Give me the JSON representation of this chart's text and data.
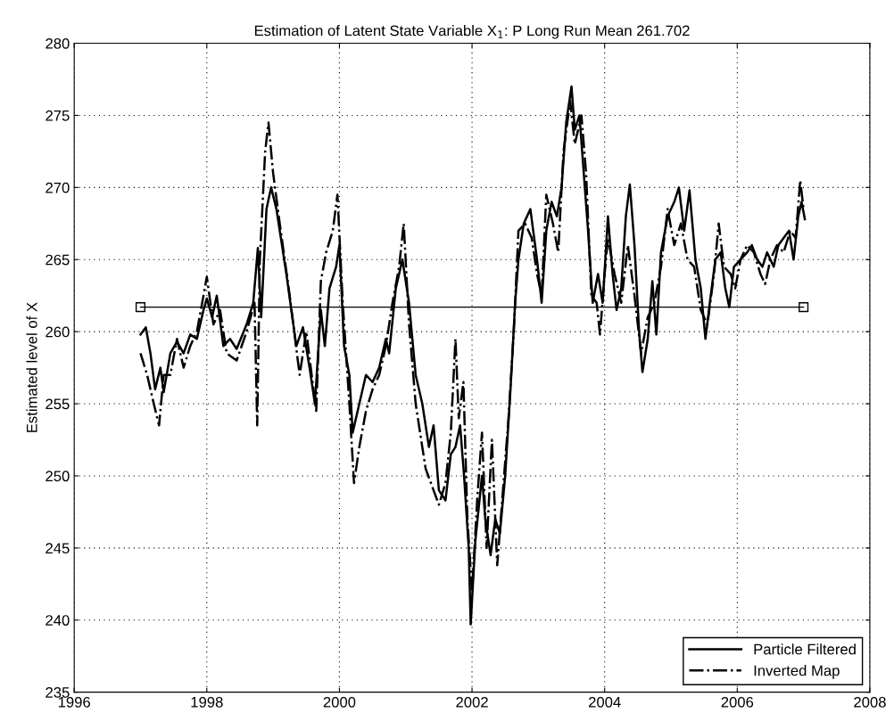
{
  "chart_data": {
    "type": "line",
    "title": "Estimation of Latent State Variable X$_{1}$: P Long Run Mean 261.702",
    "ylabel": "Estimated level of X",
    "xlim": [
      1996,
      2008
    ],
    "xticks": [
      1996,
      1998,
      2000,
      2002,
      2004,
      2006,
      2008
    ],
    "ylim": [
      235,
      280
    ],
    "yticks": [
      235,
      240,
      245,
      250,
      255,
      260,
      265,
      270,
      275,
      280
    ],
    "grid": true,
    "legend": "bottom right",
    "series": [
      {
        "name": "Particle Filtered",
        "color": "#000000",
        "line_style": "solid",
        "marker": "none",
        "x": [
          1997.0,
          1997.08,
          1997.15,
          1997.22,
          1997.3,
          1997.35,
          1997.45,
          1997.55,
          1997.65,
          1997.75,
          1997.85,
          1997.95,
          1998.0,
          1998.08,
          1998.15,
          1998.25,
          1998.35,
          1998.45,
          1998.6,
          1998.7,
          1998.77,
          1998.82,
          1998.9,
          1998.97,
          1999.05,
          1999.2,
          1999.35,
          1999.45,
          1999.55,
          1999.63,
          1999.72,
          1999.78,
          1999.85,
          1999.95,
          2000.0,
          2000.07,
          2000.15,
          2000.2,
          2000.3,
          2000.4,
          2000.5,
          2000.6,
          2000.7,
          2000.75,
          2000.85,
          2000.95,
          2001.05,
          2001.15,
          2001.25,
          2001.35,
          2001.42,
          2001.5,
          2001.6,
          2001.68,
          2001.75,
          2001.82,
          2001.88,
          2001.95,
          2001.98,
          2002.05,
          2002.15,
          2002.2,
          2002.28,
          2002.35,
          2002.42,
          2002.5,
          2002.58,
          2002.65,
          2002.7,
          2002.78,
          2002.88,
          2002.98,
          2003.05,
          2003.12,
          2003.2,
          2003.28,
          2003.35,
          2003.42,
          2003.5,
          2003.55,
          2003.62,
          2003.75,
          2003.82,
          2003.9,
          2003.97,
          2004.05,
          2004.12,
          2004.18,
          2004.25,
          2004.32,
          2004.38,
          2004.45,
          2004.52,
          2004.57,
          2004.65,
          2004.72,
          2004.78,
          2004.85,
          2004.95,
          2005.05,
          2005.12,
          2005.2,
          2005.28,
          2005.37,
          2005.45,
          2005.52,
          2005.6,
          2005.67,
          2005.75,
          2005.82,
          2005.88,
          2005.95,
          2006.05,
          2006.15,
          2006.22,
          2006.3,
          2006.38,
          2006.45,
          2006.55,
          2006.62,
          2006.7,
          2006.78,
          2006.85,
          2006.92,
          2006.97,
          2007.02
        ],
        "values": [
          259.8,
          260.3,
          258.5,
          256.0,
          257.5,
          255.8,
          258.5,
          259.3,
          258.5,
          259.8,
          259.5,
          261.5,
          262.3,
          261.0,
          262.5,
          259.0,
          259.5,
          258.8,
          260.5,
          262.0,
          265.8,
          261.0,
          268.5,
          270.0,
          268.5,
          264.0,
          259.0,
          260.3,
          257.5,
          255.0,
          261.5,
          259.0,
          263.0,
          264.5,
          266.0,
          259.0,
          257.0,
          253.0,
          255.0,
          257.0,
          256.5,
          257.5,
          259.5,
          258.5,
          263.0,
          265.0,
          262.0,
          257.0,
          255.0,
          252.0,
          253.5,
          249.0,
          248.3,
          251.5,
          252.0,
          253.5,
          250.0,
          245.0,
          239.7,
          245.5,
          250.0,
          247.0,
          244.5,
          247.0,
          246.0,
          250.0,
          256.0,
          262.0,
          265.0,
          267.5,
          268.5,
          265.0,
          262.0,
          267.0,
          269.0,
          268.0,
          270.0,
          274.5,
          277.0,
          274.0,
          275.0,
          267.0,
          262.0,
          264.0,
          262.0,
          268.0,
          264.0,
          261.5,
          263.0,
          268.0,
          270.2,
          266.0,
          260.0,
          257.2,
          259.5,
          263.5,
          259.8,
          265.5,
          268.0,
          269.0,
          270.0,
          267.0,
          269.8,
          265.0,
          263.0,
          259.5,
          262.5,
          265.0,
          265.5,
          263.0,
          261.7,
          264.5,
          265.0,
          265.5,
          266.0,
          265.0,
          264.5,
          265.5,
          264.5,
          266.0,
          266.5,
          267.0,
          265.0,
          268.0,
          269.0,
          267.8
        ]
      },
      {
        "name": "Inverted Map",
        "color": "#000000",
        "line_style": "dashdot",
        "marker": "none",
        "x": [
          1997.0,
          1997.1,
          1997.2,
          1997.28,
          1997.35,
          1997.45,
          1997.55,
          1997.65,
          1997.75,
          1997.85,
          1997.95,
          1998.0,
          1998.1,
          1998.2,
          1998.3,
          1998.45,
          1998.6,
          1998.72,
          1998.76,
          1998.8,
          1998.88,
          1998.93,
          1999.0,
          1999.1,
          1999.25,
          1999.4,
          1999.5,
          1999.65,
          1999.72,
          1999.8,
          1999.9,
          1999.97,
          2000.05,
          2000.15,
          2000.22,
          2000.3,
          2000.4,
          2000.5,
          2000.6,
          2000.7,
          2000.8,
          2000.9,
          2000.97,
          2001.05,
          2001.15,
          2001.3,
          2001.42,
          2001.5,
          2001.6,
          2001.68,
          2001.75,
          2001.8,
          2001.87,
          2001.93,
          2002.0,
          2002.08,
          2002.15,
          2002.22,
          2002.3,
          2002.38,
          2002.45,
          2002.55,
          2002.63,
          2002.7,
          2002.8,
          2002.9,
          2002.98,
          2003.05,
          2003.12,
          2003.22,
          2003.3,
          2003.38,
          2003.48,
          2003.55,
          2003.65,
          2003.72,
          2003.8,
          2003.88,
          2003.93,
          2004.0,
          2004.05,
          2004.15,
          2004.25,
          2004.35,
          2004.45,
          2004.55,
          2004.65,
          2004.75,
          2004.85,
          2004.95,
          2005.05,
          2005.15,
          2005.25,
          2005.35,
          2005.45,
          2005.55,
          2005.65,
          2005.72,
          2005.8,
          2005.9,
          2005.97,
          2006.05,
          2006.15,
          2006.25,
          2006.35,
          2006.42,
          2006.5,
          2006.6,
          2006.7,
          2006.8,
          2006.88,
          2006.95,
          2007.0
        ],
        "values": [
          258.5,
          257.0,
          255.0,
          253.5,
          257.0,
          257.0,
          259.5,
          257.5,
          259.0,
          260.0,
          262.5,
          263.8,
          260.5,
          261.5,
          258.5,
          258.0,
          260.0,
          262.0,
          253.5,
          265.0,
          272.5,
          274.5,
          271.0,
          267.5,
          262.5,
          257.0,
          260.0,
          254.5,
          263.5,
          265.5,
          267.0,
          269.5,
          262.0,
          255.0,
          249.5,
          252.0,
          254.5,
          256.0,
          257.0,
          259.0,
          262.0,
          264.5,
          267.5,
          260.5,
          255.0,
          250.5,
          249.0,
          248.0,
          249.5,
          253.0,
          259.5,
          254.0,
          256.5,
          247.0,
          242.0,
          248.5,
          253.0,
          245.0,
          252.5,
          243.8,
          248.0,
          254.0,
          260.0,
          267.0,
          267.5,
          266.5,
          264.0,
          262.5,
          269.5,
          267.5,
          265.5,
          272.5,
          276.0,
          273.0,
          275.0,
          271.0,
          262.5,
          262.0,
          259.8,
          264.0,
          266.5,
          264.0,
          262.0,
          266.0,
          262.5,
          258.5,
          261.0,
          262.0,
          264.5,
          268.5,
          266.0,
          267.5,
          265.0,
          264.5,
          261.5,
          260.5,
          264.0,
          267.5,
          264.5,
          264.0,
          263.0,
          265.0,
          266.0,
          265.5,
          264.0,
          263.3,
          265.0,
          266.0,
          265.5,
          267.0,
          266.5,
          270.5,
          268.5
        ]
      },
      {
        "color": "#000000",
        "line_style": "solid",
        "marker": "square",
        "x": [
          1997,
          2007
        ],
        "values": [
          261.702,
          261.702
        ]
      }
    ]
  }
}
